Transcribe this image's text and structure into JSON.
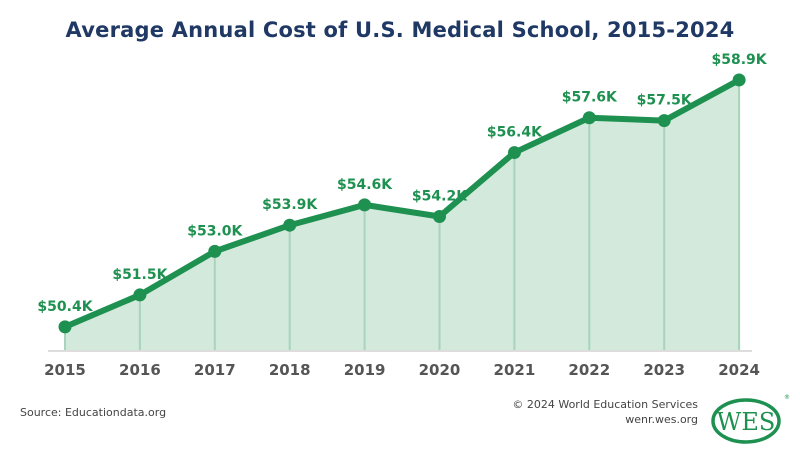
{
  "chart_data": {
    "type": "area",
    "title": "Average Annual Cost of U.S. Medical School, 2015-2024",
    "categories": [
      "2015",
      "2016",
      "2017",
      "2018",
      "2019",
      "2020",
      "2021",
      "2022",
      "2023",
      "2024"
    ],
    "values": [
      50.4,
      51.5,
      53.0,
      53.9,
      54.6,
      54.2,
      56.4,
      57.6,
      57.5,
      58.9
    ],
    "data_labels": [
      "$50.4K",
      "$51.5K",
      "$53.0K",
      "$53.9K",
      "$54.6K",
      "$54.2K",
      "$56.4K",
      "$57.6K",
      "$57.5K",
      "$58.9K"
    ],
    "unit": "thousands USD",
    "ylim": [
      49.57,
      60
    ],
    "grid": false,
    "colors": {
      "line": "#1e9150",
      "fill": "#d2e9dc",
      "drop_lines": "#a9d3ba",
      "labels": "#1e9150",
      "title": "#1f3864",
      "axis": "#dddddd"
    }
  },
  "footer": {
    "source": "Source: Educationdata.org",
    "copyright": "© 2024 World Education Services",
    "website": "wenr.wes.org",
    "logo_text": "WES"
  }
}
